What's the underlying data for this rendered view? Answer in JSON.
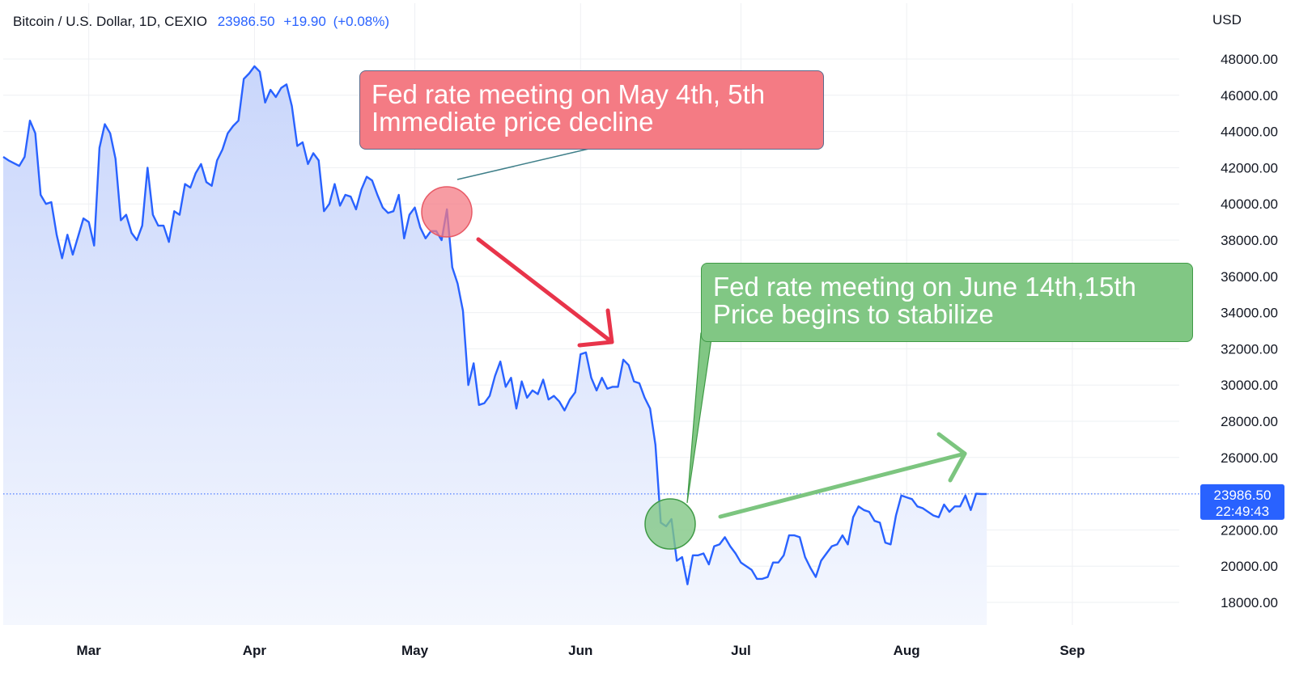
{
  "header": {
    "symbol": "Bitcoin / U.S. Dollar, 1D, CEXIO",
    "last_price": "23986.50",
    "change": "+19.90",
    "change_pct": "(+0.08%)"
  },
  "colors": {
    "line": "#2962ff",
    "area_top": "#c9d6fb",
    "area_bottom": "#f4f7fe",
    "grid": "#eef0f3",
    "red_note": "#f47b84",
    "green_note": "#81c784",
    "red_arrow": "#e8344a",
    "green_arrow": "#7cc57f",
    "price_tag": "#2962ff"
  },
  "annotations": {
    "red": {
      "line1": "Fed rate meeting on May 4th, 5th",
      "line2": "Immediate price decline"
    },
    "green": {
      "line1": "Fed rate meeting on June 14th,15th",
      "line2": "Price begins to stabilize"
    }
  },
  "price_tag": {
    "price": "23986.50",
    "countdown": "22:49:43"
  },
  "chart_data": {
    "type": "area",
    "ylabel": "USD",
    "ylim": [
      16000,
      49000
    ],
    "y_ticks": [
      18000,
      20000,
      22000,
      24000,
      26000,
      28000,
      30000,
      32000,
      34000,
      36000,
      38000,
      40000,
      42000,
      44000,
      46000,
      48000
    ],
    "x_ticks": [
      {
        "label": "Mar",
        "date": "2022-03-01"
      },
      {
        "label": "Apr",
        "date": "2022-04-01"
      },
      {
        "label": "May",
        "date": "2022-05-01"
      },
      {
        "label": "Jun",
        "date": "2022-06-01"
      },
      {
        "label": "Jul",
        "date": "2022-07-01"
      },
      {
        "label": "Aug",
        "date": "2022-08-01"
      },
      {
        "label": "Sep",
        "date": "2022-09-01"
      }
    ],
    "x_range": [
      "2022-02-13",
      "2022-09-21"
    ],
    "last_value": 23986.5,
    "grid": true,
    "series": [
      {
        "values": [
          [
            "2022-02-13",
            42600
          ],
          [
            "2022-02-14",
            42400
          ],
          [
            "2022-02-16",
            42100
          ],
          [
            "2022-02-17",
            42600
          ],
          [
            "2022-02-18",
            44600
          ],
          [
            "2022-02-19",
            43900
          ],
          [
            "2022-02-20",
            40500
          ],
          [
            "2022-02-21",
            40000
          ],
          [
            "2022-02-22",
            40100
          ],
          [
            "2022-02-23",
            38300
          ],
          [
            "2022-02-24",
            37000
          ],
          [
            "2022-02-25",
            38300
          ],
          [
            "2022-02-26",
            37200
          ],
          [
            "2022-02-28",
            39200
          ],
          [
            "2022-03-01",
            39000
          ],
          [
            "2022-03-02",
            37700
          ],
          [
            "2022-03-03",
            43100
          ],
          [
            "2022-03-04",
            44400
          ],
          [
            "2022-03-05",
            43900
          ],
          [
            "2022-03-06",
            42500
          ],
          [
            "2022-03-07",
            39100
          ],
          [
            "2022-03-08",
            39400
          ],
          [
            "2022-03-09",
            38400
          ],
          [
            "2022-03-10",
            38000
          ],
          [
            "2022-03-11",
            38800
          ],
          [
            "2022-03-12",
            42000
          ],
          [
            "2022-03-13",
            39400
          ],
          [
            "2022-03-14",
            38800
          ],
          [
            "2022-03-15",
            38800
          ],
          [
            "2022-03-16",
            37900
          ],
          [
            "2022-03-17",
            39600
          ],
          [
            "2022-03-18",
            39400
          ],
          [
            "2022-03-19",
            41100
          ],
          [
            "2022-03-20",
            40900
          ],
          [
            "2022-03-21",
            41700
          ],
          [
            "2022-03-22",
            42200
          ],
          [
            "2022-03-23",
            41200
          ],
          [
            "2022-03-24",
            41000
          ],
          [
            "2022-03-25",
            42400
          ],
          [
            "2022-03-26",
            43000
          ],
          [
            "2022-03-27",
            43900
          ],
          [
            "2022-03-28",
            44300
          ],
          [
            "2022-03-29",
            44600
          ],
          [
            "2022-03-30",
            46900
          ],
          [
            "2022-03-31",
            47200
          ],
          [
            "2022-04-01",
            47600
          ],
          [
            "2022-04-02",
            47300
          ],
          [
            "2022-04-03",
            45600
          ],
          [
            "2022-04-04",
            46300
          ],
          [
            "2022-04-05",
            45900
          ],
          [
            "2022-04-06",
            46400
          ],
          [
            "2022-04-07",
            46600
          ],
          [
            "2022-04-08",
            45400
          ],
          [
            "2022-04-09",
            43200
          ],
          [
            "2022-04-10",
            43400
          ],
          [
            "2022-04-11",
            42200
          ],
          [
            "2022-04-12",
            42800
          ],
          [
            "2022-04-13",
            42400
          ],
          [
            "2022-04-14",
            39600
          ],
          [
            "2022-04-15",
            40000
          ],
          [
            "2022-04-16",
            41100
          ],
          [
            "2022-04-17",
            39900
          ],
          [
            "2022-04-18",
            40500
          ],
          [
            "2022-04-19",
            40400
          ],
          [
            "2022-04-20",
            39700
          ],
          [
            "2022-04-21",
            40800
          ],
          [
            "2022-04-22",
            41500
          ],
          [
            "2022-04-23",
            41300
          ],
          [
            "2022-04-24",
            40500
          ],
          [
            "2022-04-25",
            39800
          ],
          [
            "2022-04-26",
            39500
          ],
          [
            "2022-04-27",
            39600
          ],
          [
            "2022-04-28",
            40500
          ],
          [
            "2022-04-29",
            38100
          ],
          [
            "2022-04-30",
            39400
          ],
          [
            "2022-05-01",
            39800
          ],
          [
            "2022-05-02",
            38700
          ],
          [
            "2022-05-03",
            38100
          ],
          [
            "2022-05-04",
            38500
          ],
          [
            "2022-05-05",
            38500
          ],
          [
            "2022-05-06",
            38000
          ],
          [
            "2022-05-07",
            39700
          ],
          [
            "2022-05-08",
            36500
          ],
          [
            "2022-05-09",
            35600
          ],
          [
            "2022-05-10",
            34100
          ],
          [
            "2022-05-11",
            30000
          ],
          [
            "2022-05-12",
            31200
          ],
          [
            "2022-05-13",
            28900
          ],
          [
            "2022-05-14",
            29000
          ],
          [
            "2022-05-15",
            29400
          ],
          [
            "2022-05-16",
            30500
          ],
          [
            "2022-05-17",
            31300
          ],
          [
            "2022-05-18",
            29900
          ],
          [
            "2022-05-19",
            30400
          ],
          [
            "2022-05-20",
            28700
          ],
          [
            "2022-05-21",
            30200
          ],
          [
            "2022-05-22",
            29300
          ],
          [
            "2022-05-23",
            29700
          ],
          [
            "2022-05-24",
            29500
          ],
          [
            "2022-05-25",
            30300
          ],
          [
            "2022-05-26",
            29200
          ],
          [
            "2022-05-27",
            29400
          ],
          [
            "2022-05-28",
            29100
          ],
          [
            "2022-05-29",
            28600
          ],
          [
            "2022-05-30",
            29200
          ],
          [
            "2022-05-31",
            29600
          ],
          [
            "2022-06-01",
            31700
          ],
          [
            "2022-06-02",
            31800
          ],
          [
            "2022-06-03",
            30400
          ],
          [
            "2022-06-04",
            29700
          ],
          [
            "2022-06-05",
            30400
          ],
          [
            "2022-06-06",
            29800
          ],
          [
            "2022-06-07",
            29900
          ],
          [
            "2022-06-08",
            29900
          ],
          [
            "2022-06-09",
            31400
          ],
          [
            "2022-06-10",
            31100
          ],
          [
            "2022-06-11",
            30200
          ],
          [
            "2022-06-12",
            30100
          ],
          [
            "2022-06-13",
            29300
          ],
          [
            "2022-06-14",
            28700
          ],
          [
            "2022-06-15",
            26700
          ],
          [
            "2022-06-16",
            22400
          ],
          [
            "2022-06-17",
            22200
          ],
          [
            "2022-06-18",
            22600
          ],
          [
            "2022-06-19",
            20300
          ],
          [
            "2022-06-20",
            20500
          ],
          [
            "2022-06-21",
            19000
          ],
          [
            "2022-06-22",
            20600
          ],
          [
            "2022-06-23",
            20600
          ],
          [
            "2022-06-24",
            20700
          ],
          [
            "2022-06-25",
            20100
          ],
          [
            "2022-06-26",
            21100
          ],
          [
            "2022-06-27",
            21200
          ],
          [
            "2022-06-28",
            21600
          ],
          [
            "2022-06-29",
            21100
          ],
          [
            "2022-06-30",
            20700
          ],
          [
            "2022-07-01",
            20200
          ],
          [
            "2022-07-02",
            20000
          ],
          [
            "2022-07-03",
            19800
          ],
          [
            "2022-07-04",
            19300
          ],
          [
            "2022-07-05",
            19300
          ],
          [
            "2022-07-06",
            19400
          ],
          [
            "2022-07-07",
            20200
          ],
          [
            "2022-07-08",
            20200
          ],
          [
            "2022-07-09",
            20600
          ],
          [
            "2022-07-10",
            21700
          ],
          [
            "2022-07-11",
            21700
          ],
          [
            "2022-07-12",
            21600
          ],
          [
            "2022-07-13",
            20500
          ],
          [
            "2022-07-14",
            19900
          ],
          [
            "2022-07-15",
            19400
          ],
          [
            "2022-07-16",
            20300
          ],
          [
            "2022-07-17",
            20700
          ],
          [
            "2022-07-18",
            21100
          ],
          [
            "2022-07-19",
            21200
          ],
          [
            "2022-07-20",
            21700
          ],
          [
            "2022-07-21",
            21200
          ],
          [
            "2022-07-22",
            22700
          ],
          [
            "2022-07-23",
            23300
          ],
          [
            "2022-07-24",
            23100
          ],
          [
            "2022-07-25",
            23000
          ],
          [
            "2022-07-26",
            22500
          ],
          [
            "2022-07-27",
            22400
          ],
          [
            "2022-07-28",
            21300
          ],
          [
            "2022-07-29",
            21200
          ],
          [
            "2022-07-30",
            22800
          ],
          [
            "2022-07-31",
            23900
          ],
          [
            "2022-08-01",
            23800
          ],
          [
            "2022-08-02",
            23700
          ],
          [
            "2022-08-03",
            23300
          ],
          [
            "2022-08-04",
            23200
          ],
          [
            "2022-08-05",
            23000
          ],
          [
            "2022-08-06",
            22800
          ],
          [
            "2022-08-07",
            22700
          ],
          [
            "2022-08-08",
            23400
          ],
          [
            "2022-08-09",
            23000
          ],
          [
            "2022-08-10",
            23300
          ],
          [
            "2022-08-11",
            23300
          ],
          [
            "2022-08-12",
            23900
          ],
          [
            "2022-08-13",
            23100
          ],
          [
            "2022-08-14",
            24000
          ],
          [
            "2022-08-15",
            23980
          ],
          [
            "2022-08-16",
            23986.5
          ]
        ]
      }
    ]
  }
}
